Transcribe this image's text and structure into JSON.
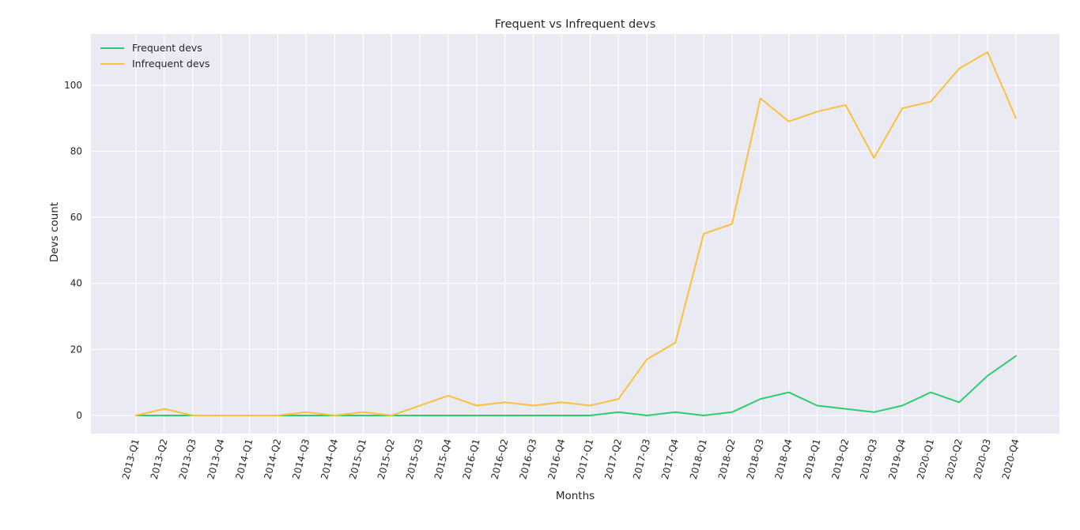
{
  "chart_data": {
    "type": "line",
    "title": "Frequent vs Infrequent devs",
    "xlabel": "Months",
    "ylabel": "Devs count",
    "categories": [
      "2013-Q1",
      "2013-Q2",
      "2013-Q3",
      "2013-Q4",
      "2014-Q1",
      "2014-Q2",
      "2014-Q3",
      "2014-Q4",
      "2015-Q1",
      "2015-Q2",
      "2015-Q3",
      "2015-Q4",
      "2016-Q1",
      "2016-Q2",
      "2016-Q3",
      "2016-Q4",
      "2017-Q1",
      "2017-Q2",
      "2017-Q3",
      "2017-Q4",
      "2018-Q1",
      "2018-Q2",
      "2018-Q3",
      "2018-Q4",
      "2019-Q1",
      "2019-Q2",
      "2019-Q3",
      "2019-Q4",
      "2020-Q1",
      "2020-Q2",
      "2020-Q3",
      "2020-Q4"
    ],
    "series": [
      {
        "name": "Frequent devs",
        "color": "#2ecc71",
        "values": [
          0,
          0,
          0,
          0,
          0,
          0,
          0,
          0,
          0,
          0,
          0,
          0,
          0,
          0,
          0,
          0,
          0,
          1,
          0,
          1,
          0,
          1,
          5,
          7,
          3,
          2,
          1,
          3,
          7,
          4,
          12,
          18
        ]
      },
      {
        "name": "Infrequent devs",
        "color": "#fbc03d",
        "values": [
          0,
          2,
          0,
          0,
          0,
          0,
          1,
          0,
          1,
          0,
          3,
          6,
          3,
          4,
          3,
          4,
          3,
          5,
          17,
          22,
          55,
          58,
          96,
          89,
          92,
          94,
          78,
          93,
          95,
          105,
          110,
          90
        ]
      }
    ],
    "yticks": [
      0,
      20,
      40,
      60,
      80,
      100
    ],
    "ylim": [
      -5.5,
      115.5
    ],
    "grid": true,
    "legend_position": "top-left",
    "background": "#eaeaf2"
  }
}
